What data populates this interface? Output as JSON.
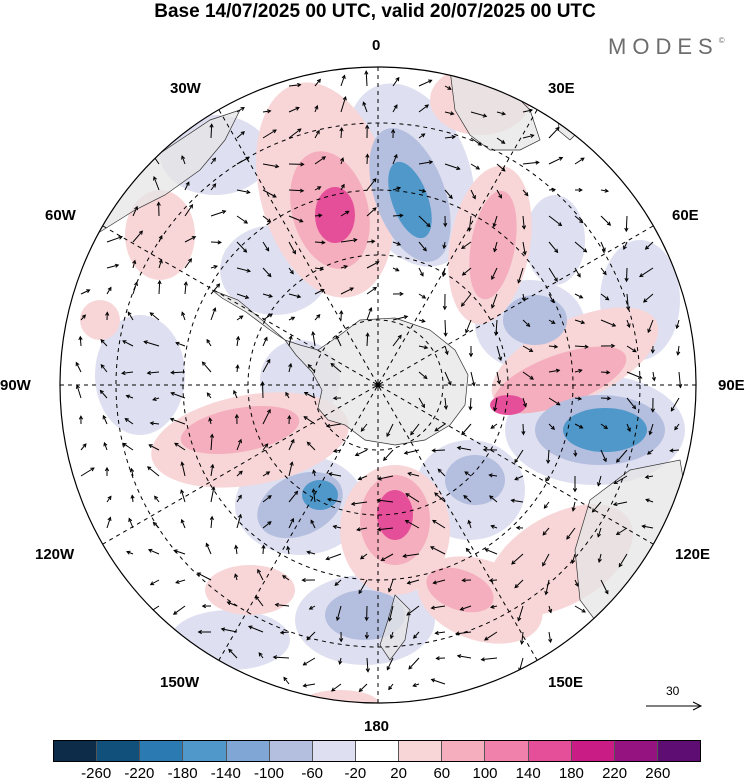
{
  "header": {
    "title": "Base 14/07/2025 00 UTC, valid 20/07/2025 00 UTC",
    "brand": "MODES",
    "brand_mark": "©"
  },
  "map": {
    "projection": "south polar stereographic",
    "longitude_labels": {
      "lon_0": "0",
      "lon_30e": "30E",
      "lon_60e": "60E",
      "lon_90e": "90E",
      "lon_120e": "120E",
      "lon_150e": "150E",
      "lon_180": "180",
      "lon_150w": "150W",
      "lon_120w": "120W",
      "lon_90w": "90W",
      "lon_60w": "60W",
      "lon_30w": "30W"
    },
    "reference_vector": "30",
    "colors": {
      "land": "#e8e8e8",
      "negative_strong": "#3f8fc4",
      "negative_medium": "#8fa9d4",
      "negative_weak": "#d8dcee",
      "positive_weak": "#f6d4d6",
      "positive_medium": "#f29fb3",
      "positive_strong": "#e14f99"
    }
  },
  "colorbar": {
    "ticks": [
      "-260",
      "-220",
      "-180",
      "-140",
      "-100",
      "-60",
      "-20",
      "20",
      "60",
      "100",
      "140",
      "180",
      "220",
      "260"
    ],
    "colors": [
      "#0c2c4a",
      "#12507c",
      "#2b7ab2",
      "#4f98c9",
      "#7fa6d4",
      "#b4bedf",
      "#dedff0",
      "#ffffff",
      "#f8d6d8",
      "#f4aebd",
      "#f081aa",
      "#e54f99",
      "#c91c85",
      "#951380",
      "#5e0d72"
    ]
  }
}
